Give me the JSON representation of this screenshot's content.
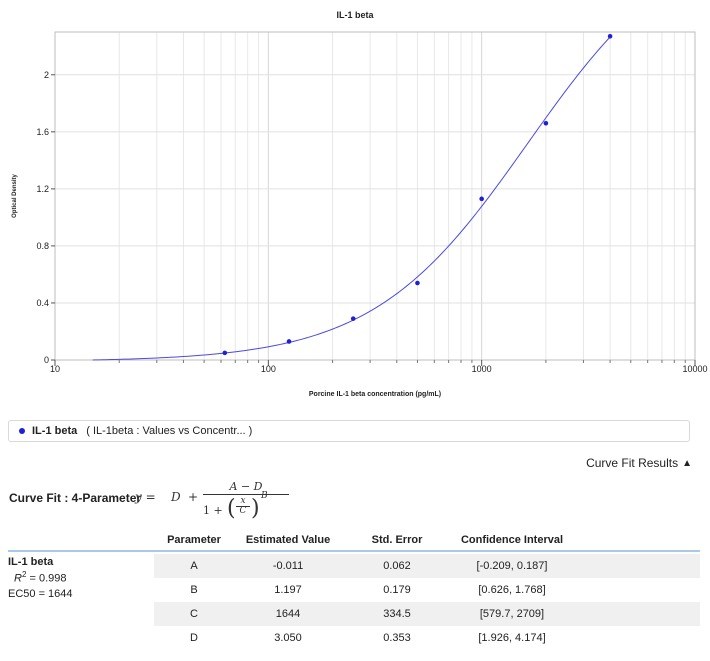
{
  "chart_data": {
    "type": "scatter",
    "title": "IL-1 beta",
    "xlabel": "Porcine IL-1 beta concentration (pg/mL)",
    "ylabel": "Optical Density",
    "xscale": "log",
    "xlim": [
      10,
      10000
    ],
    "ylim": [
      0,
      2.3
    ],
    "xticks": [
      10,
      100,
      1000,
      10000
    ],
    "xtick_labels": [
      "10",
      "100",
      "1000",
      "10000"
    ],
    "yticks": [
      0,
      0.4,
      0.8,
      1.2,
      1.6,
      2
    ],
    "ytick_labels": [
      "0",
      "0.4",
      "0.8",
      "1.2",
      "1.6",
      "2"
    ],
    "grid": true,
    "series": [
      {
        "name": "IL-1 beta",
        "color": "#1f1fd6",
        "points": [
          {
            "x": 62.5,
            "y": 0.05
          },
          {
            "x": 125,
            "y": 0.13
          },
          {
            "x": 250,
            "y": 0.29
          },
          {
            "x": 500,
            "y": 0.54
          },
          {
            "x": 1000,
            "y": 1.13
          },
          {
            "x": 2000,
            "y": 1.66
          },
          {
            "x": 4000,
            "y": 2.27
          }
        ],
        "fit": {
          "model": "4-Parameter",
          "A": -0.011,
          "B": 1.197,
          "C": 1644,
          "D": 3.05,
          "x_from": 15,
          "x_to": 4000
        }
      }
    ]
  },
  "legend": {
    "name": "IL-1 beta",
    "detail": "( IL-1beta : Values   vs  Concentr...  )"
  },
  "fit_results_toggle": "Curve Fit Results",
  "curve_fit": {
    "label": "Curve Fit : 4-Parameter",
    "formula": {
      "lhs": "y =",
      "d": "D",
      "plus": "+",
      "numerator": "A − D",
      "one_plus": "1 +",
      "x": "x",
      "c": "C",
      "exp": "B"
    }
  },
  "table": {
    "headers": [
      "Parameter",
      "Estimated Value",
      "Std. Error",
      "Confidence Interval"
    ],
    "sample": {
      "name": "IL-1 beta",
      "r2_label": "R",
      "r2_value": "= 0.998",
      "ec50": "EC50 = 1644"
    },
    "rows": [
      [
        "A",
        "-0.011",
        "0.062",
        "[-0.209, 0.187]"
      ],
      [
        "B",
        "1.197",
        "0.179",
        "[0.626, 1.768]"
      ],
      [
        "C",
        "1644",
        "334.5",
        "[579.7, 2709]"
      ],
      [
        "D",
        "3.050",
        "0.353",
        "[1.926, 4.174]"
      ]
    ]
  }
}
